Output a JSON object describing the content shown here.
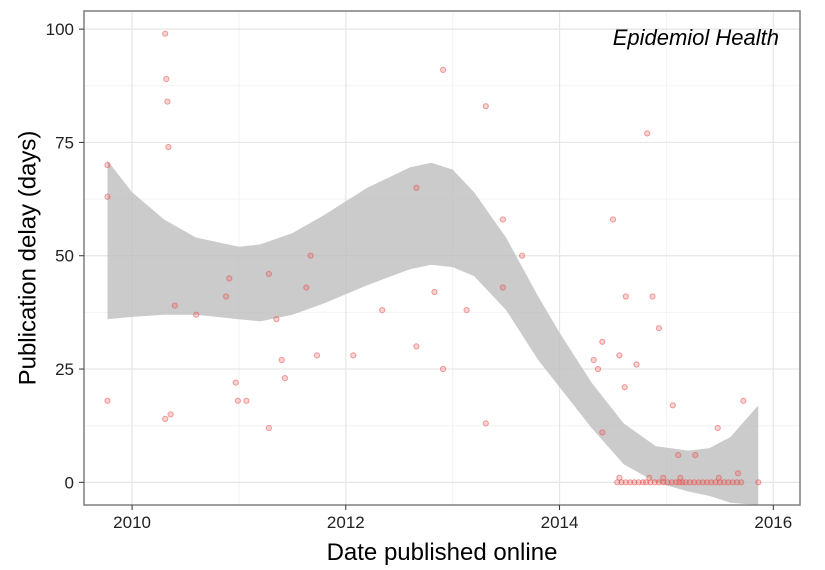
{
  "chart_data": {
    "type": "scatter",
    "title": "",
    "annotation": "Epidemiol Health",
    "xlabel": "Date published online",
    "ylabel": "Publication delay (days)",
    "xlim": [
      2009.55,
      2016.25
    ],
    "ylim": [
      -5,
      104
    ],
    "x_ticks": [
      2010,
      2012,
      2014,
      2016
    ],
    "x_tick_labels": [
      "2010",
      "2012",
      "2014",
      "2016"
    ],
    "y_ticks": [
      0,
      25,
      50,
      75,
      100
    ],
    "y_tick_labels": [
      "0",
      "25",
      "50",
      "75",
      "100"
    ],
    "grid": true,
    "point_color": "#e8534f",
    "band_color": "#bdbdbd",
    "points": [
      {
        "x": 2009.77,
        "y": 70
      },
      {
        "x": 2009.77,
        "y": 63
      },
      {
        "x": 2009.77,
        "y": 18
      },
      {
        "x": 2010.31,
        "y": 99
      },
      {
        "x": 2010.32,
        "y": 89
      },
      {
        "x": 2010.33,
        "y": 84
      },
      {
        "x": 2010.34,
        "y": 74
      },
      {
        "x": 2010.31,
        "y": 14
      },
      {
        "x": 2010.36,
        "y": 15
      },
      {
        "x": 2010.4,
        "y": 39
      },
      {
        "x": 2010.6,
        "y": 37
      },
      {
        "x": 2010.88,
        "y": 41
      },
      {
        "x": 2010.91,
        "y": 45
      },
      {
        "x": 2010.97,
        "y": 22
      },
      {
        "x": 2010.99,
        "y": 18
      },
      {
        "x": 2011.07,
        "y": 18
      },
      {
        "x": 2011.28,
        "y": 46
      },
      {
        "x": 2011.35,
        "y": 36
      },
      {
        "x": 2011.4,
        "y": 27
      },
      {
        "x": 2011.43,
        "y": 23
      },
      {
        "x": 2011.28,
        "y": 12
      },
      {
        "x": 2011.63,
        "y": 43
      },
      {
        "x": 2011.67,
        "y": 50
      },
      {
        "x": 2011.73,
        "y": 28
      },
      {
        "x": 2012.07,
        "y": 28
      },
      {
        "x": 2012.34,
        "y": 38
      },
      {
        "x": 2012.66,
        "y": 65
      },
      {
        "x": 2012.66,
        "y": 30
      },
      {
        "x": 2012.83,
        "y": 42
      },
      {
        "x": 2012.91,
        "y": 91
      },
      {
        "x": 2012.91,
        "y": 25
      },
      {
        "x": 2013.13,
        "y": 38
      },
      {
        "x": 2013.31,
        "y": 83
      },
      {
        "x": 2013.31,
        "y": 13
      },
      {
        "x": 2013.47,
        "y": 58
      },
      {
        "x": 2013.47,
        "y": 43
      },
      {
        "x": 2013.65,
        "y": 50
      },
      {
        "x": 2014.32,
        "y": 27
      },
      {
        "x": 2014.36,
        "y": 25
      },
      {
        "x": 2014.4,
        "y": 31
      },
      {
        "x": 2014.4,
        "y": 11
      },
      {
        "x": 2014.5,
        "y": 58
      },
      {
        "x": 2014.56,
        "y": 28
      },
      {
        "x": 2014.61,
        "y": 21
      },
      {
        "x": 2014.62,
        "y": 41
      },
      {
        "x": 2014.72,
        "y": 26
      },
      {
        "x": 2014.82,
        "y": 77
      },
      {
        "x": 2014.87,
        "y": 41
      },
      {
        "x": 2014.93,
        "y": 34
      },
      {
        "x": 2015.06,
        "y": 17
      },
      {
        "x": 2015.11,
        "y": 6
      },
      {
        "x": 2015.27,
        "y": 6
      },
      {
        "x": 2015.48,
        "y": 12
      },
      {
        "x": 2015.67,
        "y": 2
      },
      {
        "x": 2015.72,
        "y": 18
      },
      {
        "x": 2014.56,
        "y": 1
      },
      {
        "x": 2014.84,
        "y": 1
      },
      {
        "x": 2014.97,
        "y": 1
      },
      {
        "x": 2015.13,
        "y": 1
      },
      {
        "x": 2015.49,
        "y": 1
      },
      {
        "x": 2014.54,
        "y": 0
      },
      {
        "x": 2014.58,
        "y": 0
      },
      {
        "x": 2014.62,
        "y": 0
      },
      {
        "x": 2014.66,
        "y": 0
      },
      {
        "x": 2014.7,
        "y": 0
      },
      {
        "x": 2014.74,
        "y": 0
      },
      {
        "x": 2014.78,
        "y": 0
      },
      {
        "x": 2014.81,
        "y": 0
      },
      {
        "x": 2014.85,
        "y": 0
      },
      {
        "x": 2014.89,
        "y": 0
      },
      {
        "x": 2014.93,
        "y": 0
      },
      {
        "x": 2014.97,
        "y": 0
      },
      {
        "x": 2015.01,
        "y": 0
      },
      {
        "x": 2015.05,
        "y": 0
      },
      {
        "x": 2015.09,
        "y": 0
      },
      {
        "x": 2015.12,
        "y": 0
      },
      {
        "x": 2015.15,
        "y": 0
      },
      {
        "x": 2015.18,
        "y": 0
      },
      {
        "x": 2015.22,
        "y": 0
      },
      {
        "x": 2015.26,
        "y": 0
      },
      {
        "x": 2015.3,
        "y": 0
      },
      {
        "x": 2015.34,
        "y": 0
      },
      {
        "x": 2015.38,
        "y": 0
      },
      {
        "x": 2015.42,
        "y": 0
      },
      {
        "x": 2015.46,
        "y": 0
      },
      {
        "x": 2015.5,
        "y": 0
      },
      {
        "x": 2015.54,
        "y": 0
      },
      {
        "x": 2015.58,
        "y": 0
      },
      {
        "x": 2015.62,
        "y": 0
      },
      {
        "x": 2015.66,
        "y": 0
      },
      {
        "x": 2015.7,
        "y": 0
      },
      {
        "x": 2015.86,
        "y": 0
      }
    ],
    "smooth_band": {
      "x": [
        2009.77,
        2010.0,
        2010.3,
        2010.6,
        2011.0,
        2011.2,
        2011.5,
        2011.8,
        2012.2,
        2012.6,
        2012.8,
        2013.0,
        2013.2,
        2013.5,
        2013.8,
        2014.0,
        2014.3,
        2014.6,
        2014.9,
        2015.2,
        2015.4,
        2015.6,
        2015.86
      ],
      "upper": [
        71,
        64,
        58,
        54,
        52,
        52.5,
        55,
        59,
        65,
        69.5,
        70.5,
        69,
        64,
        54,
        41,
        33,
        22,
        13,
        8,
        7,
        7.5,
        10,
        17
      ],
      "lower": [
        36,
        36.5,
        37,
        37,
        36,
        35.5,
        37,
        39.5,
        43.5,
        47,
        48,
        47.5,
        45.5,
        38,
        27,
        21,
        12,
        4,
        0,
        -2,
        -3,
        -4.5,
        -5
      ]
    }
  }
}
